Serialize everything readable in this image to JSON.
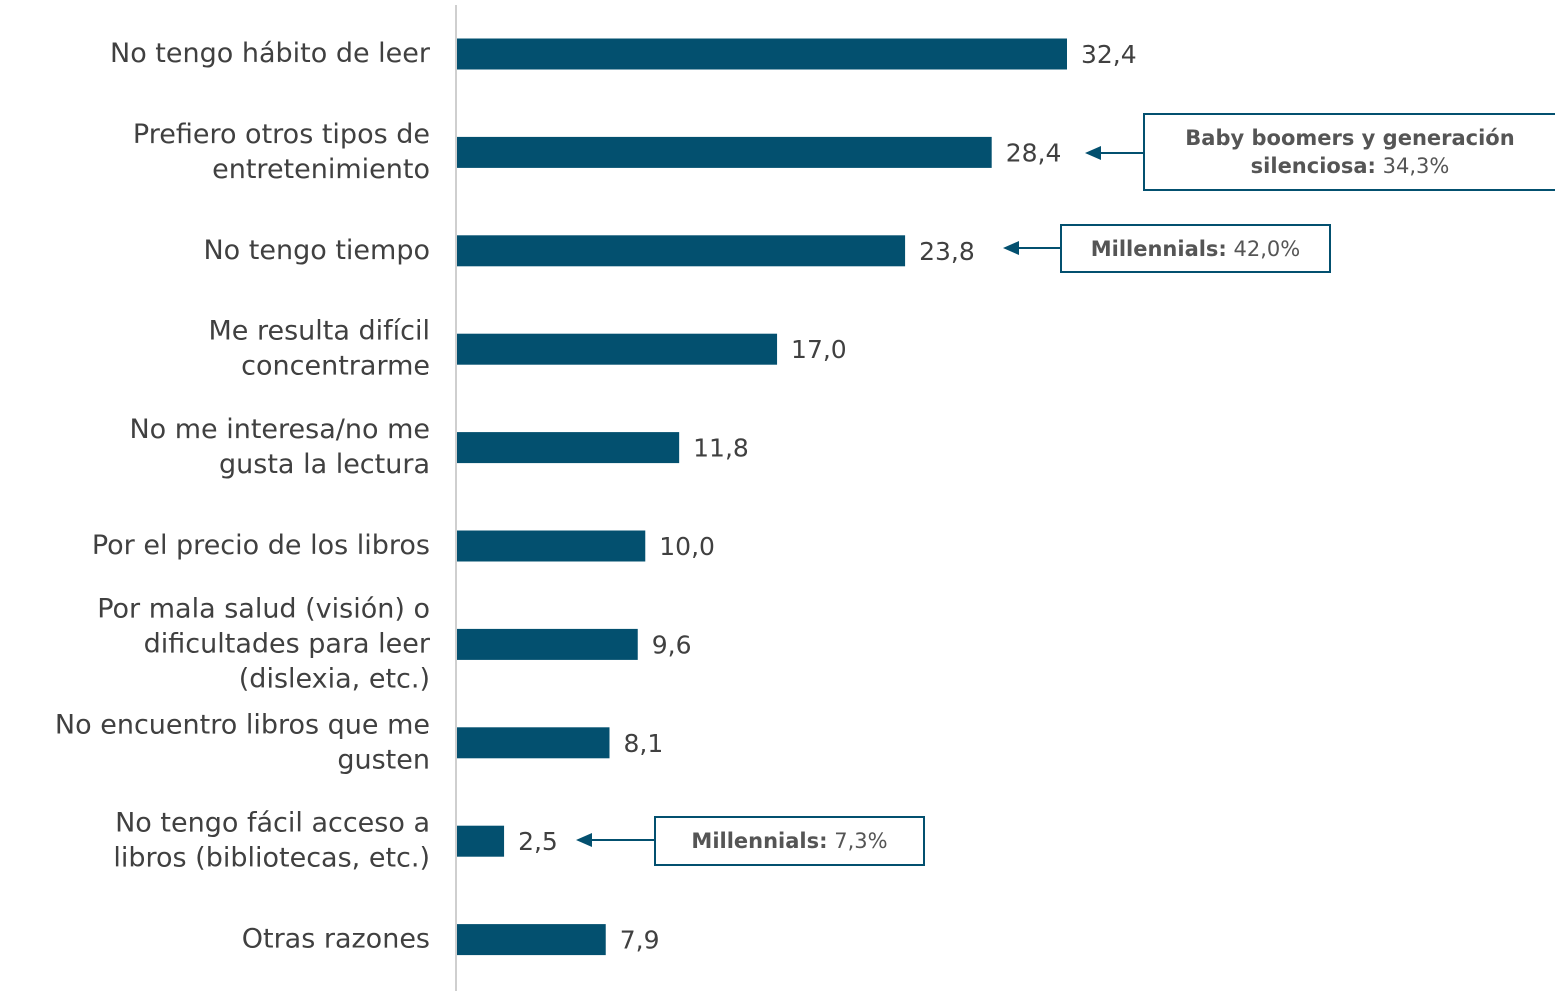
{
  "chart_data": {
    "type": "bar",
    "orientation": "horizontal",
    "categories": [
      "No tengo hábito de leer",
      "Prefiero otros tipos de\nentretenimiento",
      "No tengo tiempo",
      "Me resulta difícil\nconcentrarme",
      "No me interesa/no me\ngusta la lectura",
      "Por el precio de los libros",
      "Por mala salud (visión) o\ndificultades para leer\n(dislexia, etc.)",
      "No encuentro libros que me\ngusten",
      "No tengo fácil acceso a\nlibros (bibliotecas, etc.)",
      "Otras razones"
    ],
    "values": [
      32.4,
      28.4,
      23.8,
      17.0,
      11.8,
      10.0,
      9.6,
      8.1,
      2.5,
      7.9
    ],
    "value_labels": [
      "32,4",
      "28,4",
      "23,8",
      "17,0",
      "11,8",
      "10,0",
      "9,6",
      "8,1",
      "2,5",
      "7,9"
    ],
    "color": "#03506f",
    "annotations": [
      {
        "label": "Baby boomers y generación silenciosa:",
        "value": "34,3%"
      },
      {
        "label": "Millennials:",
        "value": "42,0%"
      },
      {
        "label": "Millennials:",
        "value": "7,3%"
      }
    ]
  }
}
